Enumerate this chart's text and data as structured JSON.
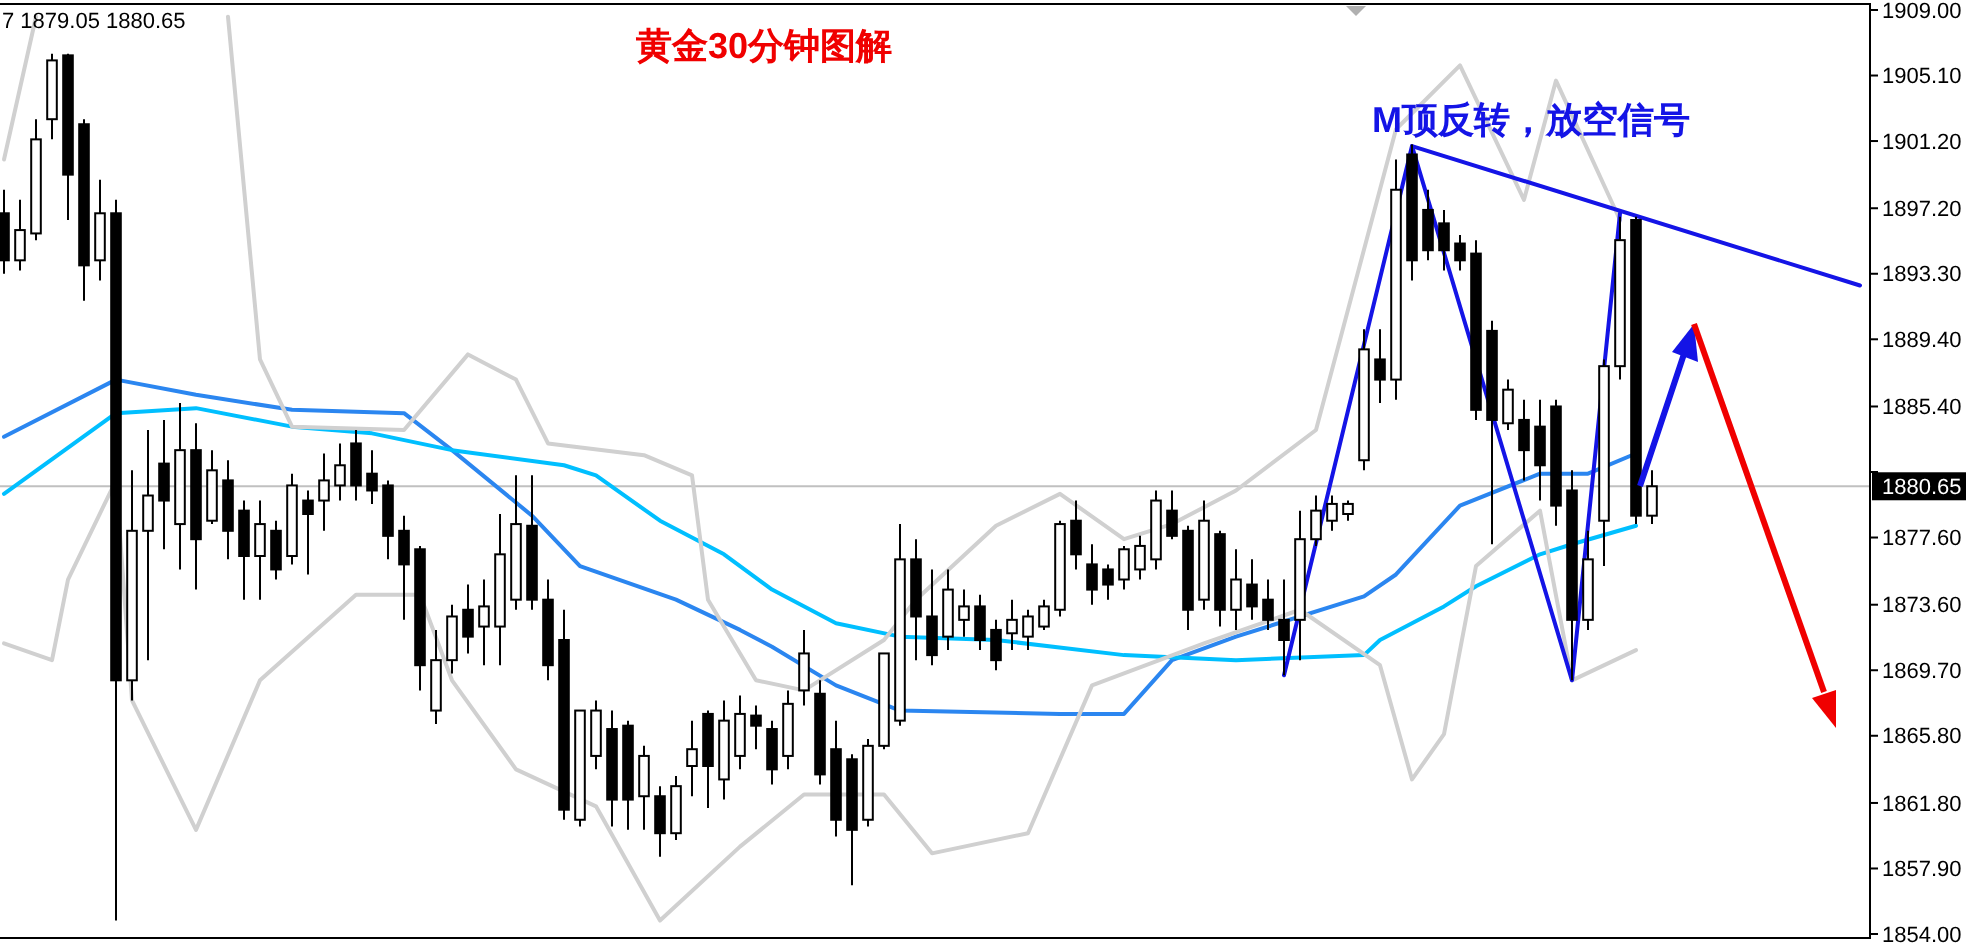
{
  "chart_data": {
    "type": "candlestick",
    "title": "黄金30分钟图解",
    "annotations": [
      "7 1879.05 1880.65",
      "M顶反转，放空信号"
    ],
    "categories": [
      null,
      null,
      null,
      null,
      null,
      null,
      null,
      null,
      null,
      null,
      null,
      null,
      null,
      null,
      null,
      null,
      null,
      null,
      null,
      null,
      null,
      null,
      null,
      null,
      null,
      null,
      null,
      null,
      null,
      null,
      null,
      null,
      null,
      null,
      null,
      null,
      null,
      null,
      null,
      null,
      null,
      null,
      null,
      null,
      null,
      null,
      null,
      null,
      null,
      null,
      null,
      null,
      null,
      null,
      null,
      null,
      null,
      null,
      null,
      null,
      null,
      null,
      null,
      null,
      null,
      null,
      null,
      null,
      null,
      null,
      null,
      null,
      null,
      null,
      null,
      null,
      null,
      null,
      null,
      null,
      null,
      null,
      null,
      null,
      null,
      null,
      null,
      null,
      null,
      null,
      null,
      null,
      null,
      null,
      null,
      null,
      null,
      null,
      null,
      null,
      null,
      null,
      null,
      null,
      null,
      null,
      null,
      null,
      null,
      null,
      null,
      null,
      null,
      null,
      null,
      null,
      null
    ],
    "ohlc": [
      [
        1896.9,
        1898.3,
        1893.3,
        1894.1
      ],
      [
        1894.1,
        1897.7,
        1893.5,
        1895.9
      ],
      [
        1895.7,
        1902.5,
        1895.3,
        1901.3
      ],
      [
        1902.5,
        1906.4,
        1901.3,
        1906.0
      ],
      [
        1906.3,
        1906.4,
        1896.5,
        1899.2
      ],
      [
        1902.2,
        1902.5,
        1891.7,
        1893.8
      ],
      [
        1894.1,
        1898.9,
        1892.9,
        1896.9
      ],
      [
        1896.9,
        1897.7,
        1854.8,
        1869.1
      ],
      [
        1869.1,
        1881.6,
        1867.9,
        1878.0
      ],
      [
        1878.0,
        1884.0,
        1870.3,
        1880.1
      ],
      [
        1882.0,
        1884.6,
        1876.9,
        1879.8
      ],
      [
        1878.4,
        1885.6,
        1875.7,
        1882.8
      ],
      [
        1882.8,
        1884.4,
        1874.5,
        1877.5
      ],
      [
        1878.6,
        1882.8,
        1878.4,
        1881.6
      ],
      [
        1881.0,
        1882.2,
        1876.3,
        1878.0
      ],
      [
        1879.2,
        1879.8,
        1873.9,
        1876.5
      ],
      [
        1876.5,
        1879.8,
        1873.9,
        1878.4
      ],
      [
        1878.0,
        1878.6,
        1875.1,
        1875.7
      ],
      [
        1876.5,
        1881.4,
        1876.0,
        1880.7
      ],
      [
        1879.8,
        1880.4,
        1875.4,
        1879.0
      ],
      [
        1879.8,
        1882.6,
        1878.0,
        1881.0
      ],
      [
        1880.7,
        1883.2,
        1879.8,
        1881.9
      ],
      [
        1883.2,
        1884.0,
        1879.8,
        1880.7
      ],
      [
        1881.4,
        1882.8,
        1879.6,
        1880.4
      ],
      [
        1880.7,
        1881.0,
        1876.3,
        1877.7
      ],
      [
        1878.0,
        1878.9,
        1872.7,
        1876.0
      ],
      [
        1876.9,
        1877.1,
        1868.5,
        1870.0
      ],
      [
        1867.3,
        1872.1,
        1866.5,
        1870.3
      ],
      [
        1870.3,
        1873.6,
        1869.5,
        1872.9
      ],
      [
        1873.3,
        1874.8,
        1870.7,
        1871.7
      ],
      [
        1872.3,
        1875.1,
        1870.0,
        1873.5
      ],
      [
        1872.3,
        1879.0,
        1870.0,
        1876.6
      ],
      [
        1873.9,
        1881.3,
        1873.3,
        1878.4
      ],
      [
        1878.3,
        1881.3,
        1873.3,
        1873.9
      ],
      [
        1873.9,
        1875.1,
        1869.1,
        1870.0
      ],
      [
        1871.5,
        1873.3,
        1860.8,
        1861.4
      ],
      [
        1860.8,
        1867.3,
        1860.4,
        1867.3
      ],
      [
        1864.6,
        1867.9,
        1863.8,
        1867.3
      ],
      [
        1866.2,
        1867.3,
        1860.4,
        1862.0
      ],
      [
        1866.4,
        1866.7,
        1860.2,
        1862.0
      ],
      [
        1862.2,
        1865.2,
        1860.2,
        1864.6
      ],
      [
        1862.2,
        1862.8,
        1858.6,
        1860.0
      ],
      [
        1860.0,
        1863.4,
        1859.6,
        1862.8
      ],
      [
        1864.0,
        1866.7,
        1862.2,
        1865.0
      ],
      [
        1867.1,
        1867.3,
        1861.5,
        1864.0
      ],
      [
        1863.2,
        1867.9,
        1862.0,
        1866.7
      ],
      [
        1864.6,
        1868.2,
        1863.8,
        1867.1
      ],
      [
        1867.0,
        1867.6,
        1865.0,
        1866.4
      ],
      [
        1866.2,
        1866.7,
        1862.9,
        1863.8
      ],
      [
        1864.6,
        1868.5,
        1863.8,
        1867.7
      ],
      [
        1868.5,
        1872.1,
        1867.6,
        1870.7
      ],
      [
        1868.3,
        1869.1,
        1862.9,
        1863.5
      ],
      [
        1865.0,
        1866.7,
        1859.8,
        1860.8
      ],
      [
        1864.4,
        1864.7,
        1856.9,
        1860.2
      ],
      [
        1860.8,
        1865.6,
        1860.4,
        1865.2
      ],
      [
        1865.2,
        1870.7,
        1865.0,
        1870.7
      ],
      [
        1866.7,
        1878.4,
        1866.4,
        1876.3
      ],
      [
        1876.3,
        1877.5,
        1870.3,
        1872.9
      ],
      [
        1872.9,
        1875.7,
        1870.0,
        1870.6
      ],
      [
        1871.7,
        1875.7,
        1870.9,
        1874.5
      ],
      [
        1872.7,
        1874.5,
        1871.7,
        1873.5
      ],
      [
        1873.5,
        1874.2,
        1870.9,
        1871.5
      ],
      [
        1872.1,
        1872.7,
        1869.7,
        1870.3
      ],
      [
        1871.9,
        1873.9,
        1870.9,
        1872.7
      ],
      [
        1871.7,
        1873.3,
        1870.9,
        1872.9
      ],
      [
        1872.3,
        1873.9,
        1872.1,
        1873.5
      ],
      [
        1873.3,
        1878.6,
        1872.9,
        1878.4
      ],
      [
        1878.6,
        1879.8,
        1875.7,
        1876.6
      ],
      [
        1876.0,
        1877.2,
        1873.6,
        1874.5
      ],
      [
        1875.7,
        1876.0,
        1873.9,
        1874.8
      ],
      [
        1875.1,
        1877.1,
        1874.5,
        1876.9
      ],
      [
        1875.7,
        1877.7,
        1875.1,
        1877.1
      ],
      [
        1876.3,
        1880.4,
        1875.7,
        1879.8
      ],
      [
        1879.2,
        1880.4,
        1877.5,
        1877.7
      ],
      [
        1878.0,
        1878.3,
        1872.1,
        1873.3
      ],
      [
        1873.9,
        1879.8,
        1873.3,
        1878.6
      ],
      [
        1877.8,
        1878.0,
        1872.3,
        1873.3
      ],
      [
        1873.3,
        1876.9,
        1872.1,
        1875.1
      ],
      [
        1874.8,
        1876.3,
        1872.7,
        1873.5
      ],
      [
        1873.9,
        1875.1,
        1872.1,
        1872.7
      ],
      [
        1872.7,
        1875.1,
        1869.4,
        1871.5
      ],
      [
        1872.7,
        1879.2,
        1870.3,
        1877.5
      ],
      [
        1877.5,
        1880.1,
        1877.1,
        1879.2
      ],
      [
        1878.6,
        1880.1,
        1878.0,
        1879.6
      ],
      [
        1879.0,
        1879.8,
        1878.6,
        1879.6
      ],
      [
        1882.2,
        1890.0,
        1881.6,
        1888.8
      ],
      [
        1888.2,
        1890.0,
        1885.6,
        1887.0
      ],
      [
        1887.0,
        1900.1,
        1885.8,
        1898.3
      ],
      [
        1900.4,
        1901.0,
        1892.9,
        1894.1
      ],
      [
        1897.1,
        1898.3,
        1894.1,
        1894.7
      ],
      [
        1896.3,
        1897.1,
        1893.5,
        1894.7
      ],
      [
        1895.1,
        1895.6,
        1893.5,
        1894.1
      ],
      [
        1894.5,
        1895.3,
        1884.6,
        1885.2
      ],
      [
        1889.9,
        1890.5,
        1877.2,
        1884.6
      ],
      [
        1884.4,
        1887.0,
        1884.0,
        1886.4
      ],
      [
        1884.6,
        1885.8,
        1881.0,
        1882.8
      ],
      [
        1884.2,
        1885.8,
        1879.8,
        1881.9
      ],
      [
        1885.4,
        1885.8,
        1878.3,
        1879.5
      ],
      [
        1880.4,
        1881.6,
        1869.1,
        1872.7
      ],
      [
        1872.7,
        1878.0,
        1872.1,
        1876.3
      ],
      [
        1878.6,
        1888.2,
        1875.9,
        1887.8
      ],
      [
        1887.8,
        1896.7,
        1887.0,
        1895.3
      ],
      [
        1896.5,
        1896.7,
        1878.4,
        1878.9
      ],
      [
        1878.9,
        1881.6,
        1878.4,
        1880.65
      ],
      null,
      null,
      null,
      null,
      null,
      null,
      null,
      null,
      null,
      null,
      null,
      null,
      null
    ],
    "series": [
      {
        "type": "line",
        "color": "#2b86f0",
        "values": [
          1883.6,
          null,
          null,
          null,
          null,
          null,
          null,
          1887.0,
          null,
          null,
          null,
          null,
          1886.1,
          null,
          null,
          null,
          null,
          null,
          1885.2,
          null,
          null,
          null,
          null,
          null,
          null,
          1885.0,
          null,
          null,
          1882.8,
          null,
          null,
          null,
          null,
          1878.9,
          null,
          null,
          1875.9,
          null,
          null,
          null,
          null,
          null,
          1873.9,
          null,
          null,
          null,
          1872.1,
          null,
          1871.1,
          null,
          null,
          null,
          1868.8,
          null,
          null,
          null,
          1867.3,
          null,
          null,
          null,
          null,
          null,
          null,
          null,
          null,
          null,
          1867.1,
          null,
          null,
          null,
          1867.1,
          null,
          null,
          1870.3,
          null,
          null,
          null,
          1871.7,
          null,
          null,
          null,
          null,
          null,
          null,
          null,
          1874.1,
          null,
          1875.4,
          null,
          null,
          null,
          1879.5,
          null,
          null,
          null,
          null,
          1881.4,
          null,
          null,
          1881.4,
          null,
          null,
          1882.6,
          null,
          null,
          null,
          null,
          null,
          null,
          null,
          null,
          null,
          null,
          null,
          null,
          null,
          null
        ]
      },
      {
        "type": "line",
        "color": "#00bfff",
        "values": [
          1880.2,
          null,
          null,
          null,
          null,
          null,
          null,
          1885.0,
          null,
          null,
          null,
          null,
          1885.3,
          null,
          null,
          null,
          null,
          null,
          1884.2,
          null,
          null,
          null,
          null,
          1883.8,
          null,
          null,
          null,
          null,
          1882.8,
          null,
          null,
          null,
          null,
          null,
          null,
          1881.9,
          null,
          1881.3,
          null,
          null,
          null,
          1878.6,
          null,
          null,
          null,
          1876.6,
          null,
          null,
          1874.5,
          null,
          null,
          null,
          1872.5,
          null,
          null,
          null,
          1871.7,
          null,
          null,
          null,
          null,
          null,
          1871.5,
          null,
          null,
          null,
          null,
          null,
          null,
          null,
          1870.6,
          null,
          null,
          null,
          null,
          null,
          null,
          1870.3,
          null,
          null,
          null,
          null,
          null,
          null,
          null,
          1870.6,
          1871.5,
          null,
          null,
          null,
          1873.5,
          null,
          1874.7,
          null,
          null,
          null,
          1876.6,
          null,
          1877.2,
          null,
          null,
          null,
          1878.3,
          null,
          null,
          null,
          null,
          null,
          null,
          null,
          null,
          null,
          null,
          null,
          null,
          null,
          null
        ]
      },
      {
        "type": "line",
        "color": "#d0d0d0",
        "values": [
          1900.1,
          null,
          1908.6,
          null,
          null,
          null,
          null,
          null,
          null,
          null,
          null,
          null,
          null,
          null,
          null,
          null,
          null,
          null,
          null,
          null,
          null,
          null,
          null,
          null,
          null,
          null,
          null,
          null,
          null,
          null,
          null,
          null,
          null,
          null,
          null,
          null,
          null,
          null,
          null,
          null,
          null,
          null,
          null,
          null,
          null,
          null,
          null,
          null,
          null,
          null,
          null,
          null,
          null,
          null,
          null,
          null,
          null,
          null,
          null,
          null,
          null,
          null,
          null,
          null,
          null,
          null,
          null,
          null,
          null,
          null,
          null,
          null,
          null,
          null,
          null,
          null,
          null,
          null,
          null,
          null,
          null,
          null,
          null,
          null,
          null,
          null,
          null,
          null,
          null,
          null,
          null,
          null,
          null,
          null,
          null,
          null,
          null,
          null,
          null,
          null,
          null,
          null,
          null,
          null,
          null,
          null,
          null,
          null,
          null,
          null,
          null,
          null,
          null,
          null,
          null,
          null,
          null
        ]
      },
      {
        "type": "line",
        "color": "#d0d0d0",
        "values": [
          null,
          null,
          null,
          null,
          null,
          null,
          null,
          null,
          null,
          null,
          null,
          null,
          null,
          null,
          1908.6,
          null,
          1888.2,
          null,
          1884.2,
          null,
          null,
          null,
          null,
          null,
          null,
          1884.0,
          null,
          null,
          null,
          1888.5,
          null,
          null,
          1887.0,
          null,
          1883.2,
          null,
          null,
          null,
          null,
          null,
          1882.5,
          null,
          null,
          1881.3,
          1873.9,
          null,
          null,
          1869.1,
          null,
          null,
          1868.5,
          null,
          null,
          null,
          null,
          1871.5,
          null,
          1873.9,
          null,
          null,
          null,
          null,
          1878.3,
          null,
          null,
          null,
          1880.2,
          null,
          null,
          null,
          1877.5,
          null,
          null,
          1878.4,
          null,
          null,
          null,
          1880.4,
          null,
          null,
          null,
          null,
          1884.0,
          null,
          null,
          null,
          null,
          1901.9,
          null,
          null,
          null,
          1905.7,
          null,
          null,
          null,
          1897.7,
          null,
          1904.8,
          null,
          null,
          null,
          1896.5,
          null,
          null,
          null,
          null,
          null,
          null,
          null,
          null,
          null,
          null,
          null,
          null,
          null,
          null,
          null
        ]
      },
      {
        "type": "line",
        "color": "#d0d0d0",
        "values": [
          1871.3,
          null,
          null,
          1870.3,
          1875.1,
          null,
          null,
          1881.0,
          1867.9,
          null,
          null,
          null,
          1860.2,
          null,
          null,
          null,
          1869.1,
          null,
          null,
          null,
          null,
          null,
          1874.2,
          null,
          null,
          null,
          1874.2,
          null,
          1869.1,
          null,
          null,
          null,
          1863.8,
          null,
          null,
          null,
          null,
          1861.6,
          null,
          null,
          null,
          1854.8,
          null,
          null,
          null,
          null,
          1859.2,
          null,
          null,
          null,
          1862.3,
          null,
          null,
          null,
          null,
          1862.3,
          null,
          null,
          1858.8,
          null,
          null,
          null,
          null,
          null,
          1860.0,
          null,
          null,
          null,
          1868.8,
          null,
          null,
          null,
          null,
          null,
          null,
          1871.3,
          null,
          null,
          null,
          null,
          null,
          1873.3,
          null,
          null,
          null,
          null,
          1870.0,
          null,
          1863.2,
          null,
          1865.9,
          null,
          1875.9,
          null,
          null,
          null,
          1879.2,
          null,
          1869.1,
          null,
          null,
          null,
          1870.9,
          null,
          null,
          null,
          null,
          null,
          null,
          null,
          null,
          null,
          null,
          null,
          null,
          null,
          null
        ]
      },
      {
        "type": "line",
        "color": "#1414e6",
        "values": [
          null,
          null,
          null,
          null,
          null,
          null,
          null,
          null,
          null,
          null,
          null,
          null,
          null,
          null,
          null,
          null,
          null,
          null,
          null,
          null,
          null,
          null,
          null,
          null,
          null,
          null,
          null,
          null,
          null,
          null,
          null,
          null,
          null,
          null,
          null,
          null,
          null,
          null,
          null,
          null,
          null,
          null,
          null,
          null,
          null,
          null,
          null,
          null,
          null,
          null,
          null,
          null,
          null,
          null,
          null,
          null,
          null,
          null,
          null,
          null,
          null,
          null,
          null,
          null,
          null,
          null,
          null,
          null,
          null,
          null,
          null,
          null,
          null,
          null,
          null,
          null,
          null,
          null,
          null,
          null,
          1869.4,
          null,
          null,
          null,
          null,
          null,
          null,
          null,
          1900.9,
          null,
          null,
          null,
          null,
          null,
          null,
          null,
          null,
          null,
          1869.1,
          null,
          null,
          1896.9,
          null,
          null,
          null,
          null,
          null,
          null,
          null,
          null,
          null,
          null,
          null,
          null,
          null,
          null,
          null
        ]
      },
      {
        "type": "line",
        "color": "#1414e6",
        "values": [
          null,
          null,
          null,
          null,
          null,
          null,
          null,
          null,
          null,
          null,
          null,
          null,
          null,
          null,
          null,
          null,
          null,
          null,
          null,
          null,
          null,
          null,
          null,
          null,
          null,
          null,
          null,
          null,
          null,
          null,
          null,
          null,
          null,
          null,
          null,
          null,
          null,
          null,
          null,
          null,
          null,
          null,
          null,
          null,
          null,
          null,
          null,
          null,
          null,
          null,
          null,
          null,
          null,
          null,
          null,
          null,
          null,
          null,
          null,
          null,
          null,
          null,
          null,
          null,
          null,
          null,
          null,
          null,
          null,
          null,
          null,
          null,
          null,
          null,
          null,
          null,
          null,
          null,
          null,
          null,
          null,
          null,
          null,
          null,
          null,
          null,
          null,
          null,
          1900.9,
          null,
          null,
          null,
          null,
          null,
          null,
          null,
          null,
          null,
          null,
          null,
          null,
          null,
          null,
          null,
          null,
          null,
          null,
          null,
          null,
          null,
          null,
          null,
          null,
          null,
          null,
          null,
          1892.6
        ]
      }
    ],
    "ylim": [
      1854,
      1909
    ],
    "yticks": [
      {
        "value": 1909,
        "label": "1909.00"
      },
      {
        "value": 1905.1,
        "label": "1905.10"
      },
      {
        "value": 1901.2,
        "label": "1901.20"
      },
      {
        "value": 1897.2,
        "label": "1897.20"
      },
      {
        "value": 1893.3,
        "label": "1893.30"
      },
      {
        "value": 1889.4,
        "label": "1889.40"
      },
      {
        "value": 1885.4,
        "label": "1885.40"
      },
      {
        "value": 1881.5,
        "label": null
      },
      {
        "value": 1877.6,
        "label": "1877.60"
      },
      {
        "value": 1873.6,
        "label": "1873.60"
      },
      {
        "value": 1869.7,
        "label": "1869.70"
      },
      {
        "value": 1865.8,
        "label": "1865.80"
      },
      {
        "value": 1861.8,
        "label": "1861.80"
      },
      {
        "value": 1857.9,
        "label": "1857.90"
      },
      {
        "value": 1854,
        "label": "1854.00"
      }
    ],
    "ref_lines": [
      {
        "axis": "y",
        "value": 1880.65,
        "label": "1880.65",
        "color": "#c0c0c0"
      }
    ],
    "tick_labels": "y"
  }
}
